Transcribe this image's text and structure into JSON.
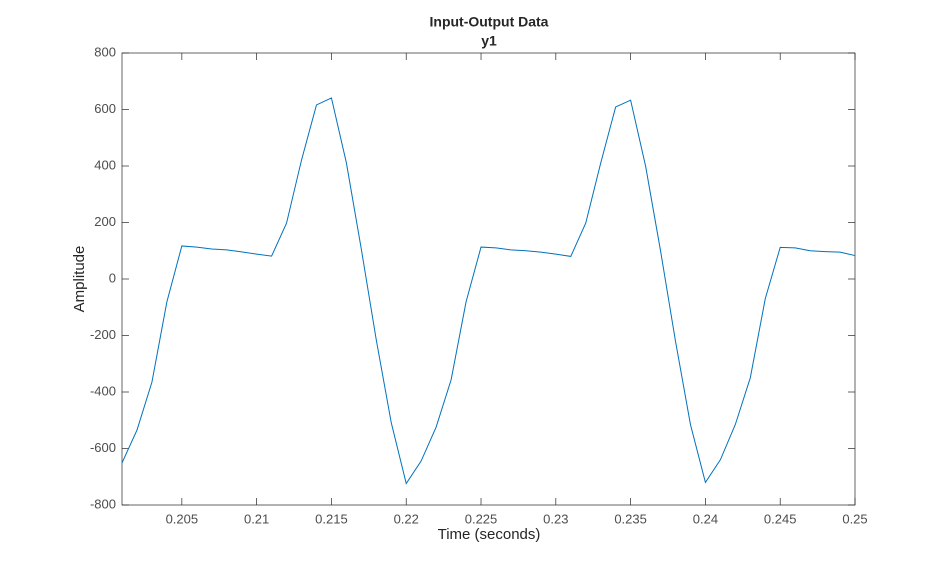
{
  "chart_data": {
    "type": "line",
    "title": "Input-Output Data",
    "subtitle": "y1",
    "xlabel": "Time (seconds)",
    "ylabel": "Amplitude",
    "x": [
      0.201,
      0.202,
      0.203,
      0.204,
      0.205,
      0.206,
      0.207,
      0.208,
      0.209,
      0.21,
      0.211,
      0.212,
      0.213,
      0.214,
      0.215,
      0.216,
      0.217,
      0.218,
      0.219,
      0.22,
      0.221,
      0.222,
      0.223,
      0.224,
      0.225,
      0.226,
      0.227,
      0.228,
      0.229,
      0.23,
      0.231,
      0.232,
      0.233,
      0.234,
      0.235,
      0.236,
      0.237,
      0.238,
      0.239,
      0.24,
      0.241,
      0.242,
      0.243,
      0.244,
      0.245,
      0.246,
      0.247,
      0.248,
      0.249,
      0.25
    ],
    "series": [
      {
        "name": "y1",
        "color": "#0072bd",
        "values": [
          -651,
          -535,
          -365,
          -81,
          117,
          113,
          106,
          103,
          96,
          88,
          81,
          198,
          421,
          616,
          641,
          411,
          105,
          -216,
          -509,
          -724,
          -644,
          -524,
          -357,
          -81,
          113,
          110,
          103,
          100,
          95,
          88,
          80,
          198,
          410,
          609,
          633,
          400,
          100,
          -220,
          -515,
          -720,
          -640,
          -515,
          -350,
          -70,
          112,
          110,
          100,
          97,
          95,
          83
        ]
      }
    ],
    "xlim": [
      0.201,
      0.25
    ],
    "ylim": [
      -800,
      800
    ],
    "xticks": [
      0.205,
      0.21,
      0.215,
      0.22,
      0.225,
      0.23,
      0.235,
      0.24,
      0.245,
      0.25
    ],
    "yticks": [
      -800,
      -600,
      -400,
      -200,
      0,
      200,
      400,
      600,
      800
    ]
  }
}
